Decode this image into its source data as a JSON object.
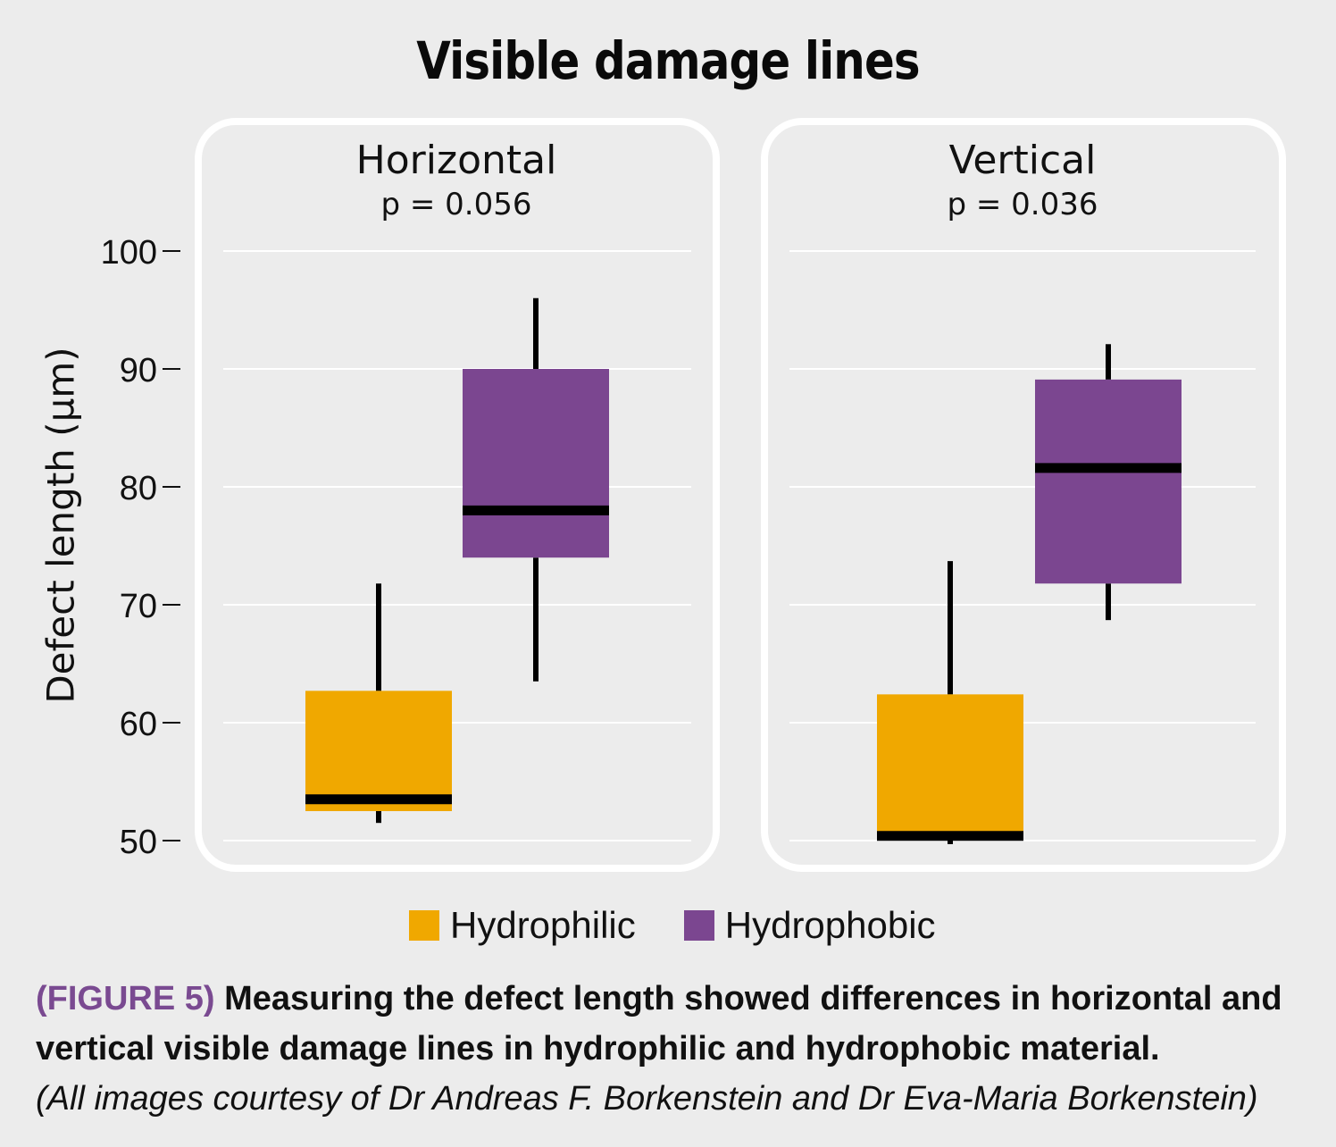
{
  "chart_data": {
    "type": "box",
    "title": "Visible damage lines",
    "ylabel": "Defect length (µm)",
    "ylim": [
      50,
      100
    ],
    "yticks": [
      100,
      90,
      80,
      70,
      60,
      50
    ],
    "grid": true,
    "legend": [
      {
        "label": "Hydrophilic",
        "color": "#f0a800"
      },
      {
        "label": "Hydrophobic",
        "color": "#7b4690"
      }
    ],
    "panels": [
      {
        "name": "Horizontal",
        "pvalue": "p = 0.056",
        "boxes": [
          {
            "group": "Hydrophilic",
            "whisker_low": 51.5,
            "q1": 52.5,
            "median": 53.5,
            "q3": 62.7,
            "whisker_high": 71.8
          },
          {
            "group": "Hydrophobic",
            "whisker_low": 63.5,
            "q1": 74,
            "median": 78,
            "q3": 90,
            "whisker_high": 96
          }
        ]
      },
      {
        "name": "Vertical",
        "pvalue": "p = 0.036",
        "boxes": [
          {
            "group": "Hydrophilic",
            "whisker_low": 49.7,
            "q1": 50,
            "median": 50.4,
            "q3": 62.4,
            "whisker_high": 73.7
          },
          {
            "group": "Hydrophobic",
            "whisker_low": 68.7,
            "q1": 71.8,
            "median": 81.6,
            "q3": 89.1,
            "whisker_high": 92.1
          }
        ]
      }
    ]
  },
  "caption": {
    "lead": "(FIGURE 5)",
    "text": "Measuring the defect length showed differences in horizontal and vertical visible damage lines in hydrophilic and hydrophobic material.",
    "credit": "(All images courtesy of Dr Andreas F. Borkenstein and Dr Eva-Maria Borkenstein)"
  },
  "colors": {
    "background": "#ececec",
    "panel_border": "#ffffff",
    "grid": "#ffffff",
    "caption_lead": "#7a4a91"
  }
}
